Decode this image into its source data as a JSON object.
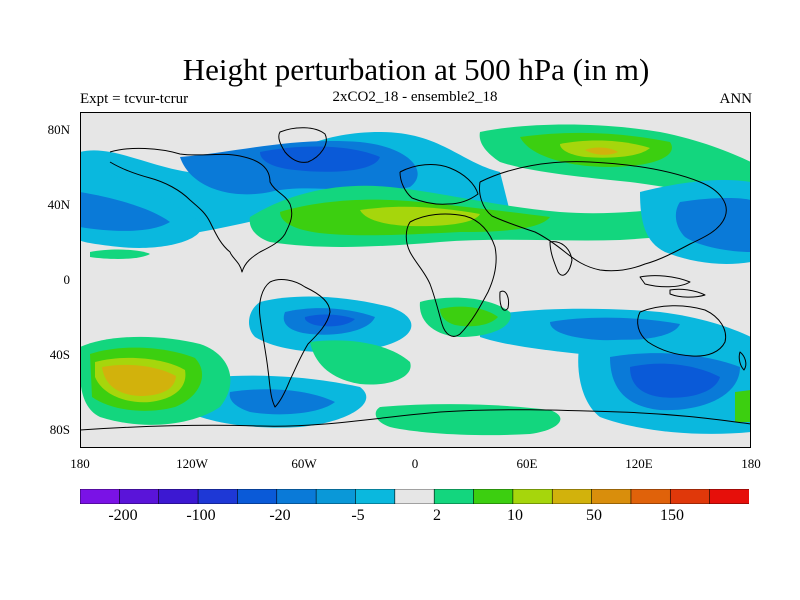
{
  "header": {
    "title": "Height perturbation at 500 hPa (in m)",
    "experiment": "Expt = tcvur-tcrur",
    "run": "2xCO2_18 - ensemble2_18",
    "period": "ANN"
  },
  "axes": {
    "lat_labels": [
      "80N",
      "40N",
      "0",
      "40S",
      "80S"
    ],
    "lon_labels": [
      "180",
      "120W",
      "60W",
      "0",
      "60E",
      "120E",
      "180"
    ]
  },
  "colorbar": {
    "colors": [
      "#7a12e6",
      "#5a14d9",
      "#3c18d2",
      "#1e38d6",
      "#0a5ad8",
      "#0a7ad8",
      "#0a98d8",
      "#0ab8de",
      "#e6e6e6",
      "#13d67e",
      "#3ccf10",
      "#a6d60c",
      "#d2b20c",
      "#d98e0c",
      "#e0620a",
      "#e0380a",
      "#e60f0a"
    ],
    "labels": [
      "-200",
      "-100",
      "-20",
      "-5",
      "2",
      "10",
      "50",
      "150"
    ]
  },
  "map": {
    "background": "#e6e6e6"
  }
}
